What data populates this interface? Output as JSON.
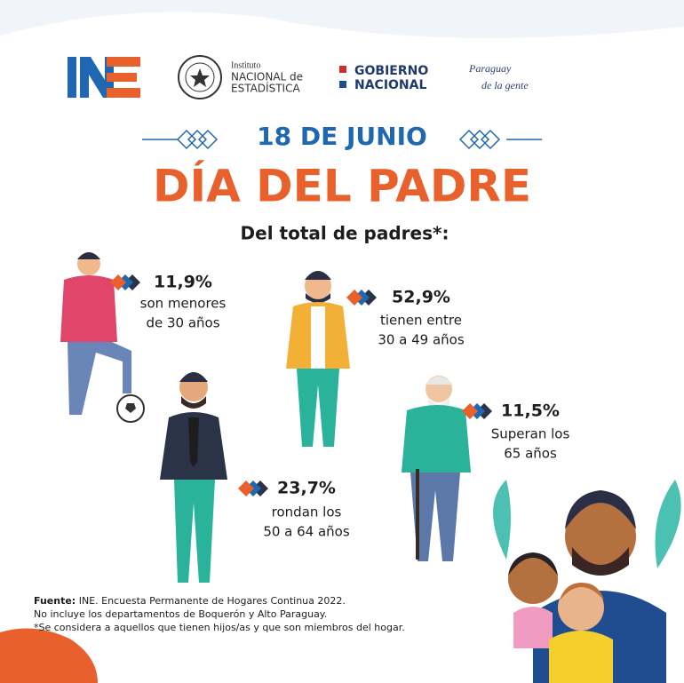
{
  "header": {
    "institute": [
      "Instituto",
      "NACIONAL de",
      "ESTADÍSTICA"
    ],
    "government": [
      "GOBIERNO",
      "NACIONAL"
    ],
    "slogan": [
      "Paraguay",
      "de la gente"
    ]
  },
  "date": "18 DE JUNIO",
  "title": "DÍA DEL PADRE",
  "subtitle": "Del total de padres*:",
  "stats": [
    {
      "value": "11,9%",
      "lines": [
        "son menores",
        "de 30 años"
      ]
    },
    {
      "value": "52,9%",
      "lines": [
        "tienen entre",
        "30 a 49 años"
      ]
    },
    {
      "value": "11,5%",
      "lines": [
        "Superan los",
        "65 años"
      ]
    },
    {
      "value": "23,7%",
      "lines": [
        "rondan los",
        "50 a 64 años"
      ]
    }
  ],
  "footer": {
    "source_label": "Fuente:",
    "source": "INE. Encuesta Permanente de Hogares Continua 2022.",
    "notes": [
      "No incluye los departamentos de Boquerón y Alto Paraguay.",
      "*Se considera a aquellos que tienen hijos/as y que son miembros del hogar."
    ]
  }
}
